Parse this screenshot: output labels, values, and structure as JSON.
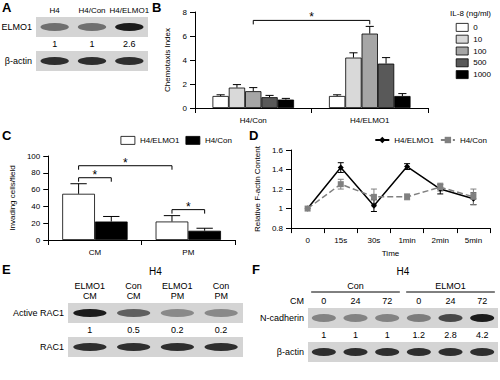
{
  "chart_data": [
    {
      "panel": "B",
      "type": "bar",
      "y_label": "Chemotaxis Index",
      "categories": [
        "H4/Con",
        "H4/ELMO1"
      ],
      "legend_title": "IL-8 (ng/ml)",
      "legend": "right",
      "grid": false,
      "series": [
        {
          "name": "0",
          "color": "#ffffff",
          "values": [
            1.0,
            1.0
          ],
          "errors": [
            0.1,
            0.1
          ]
        },
        {
          "name": "10",
          "color": "#d9d9d9",
          "values": [
            1.7,
            4.2
          ],
          "errors": [
            0.25,
            0.4
          ]
        },
        {
          "name": "100",
          "color": "#a6a6a6",
          "values": [
            1.4,
            6.2
          ],
          "errors": [
            0.3,
            0.6
          ]
        },
        {
          "name": "500",
          "color": "#595959",
          "values": [
            0.9,
            3.7
          ],
          "errors": [
            0.15,
            0.5
          ]
        },
        {
          "name": "1000",
          "color": "#000000",
          "values": [
            0.7,
            1.0
          ],
          "errors": [
            0.1,
            0.2
          ]
        }
      ],
      "ylim": [
        0,
        8
      ],
      "yticks": [
        0,
        2,
        4,
        6,
        8
      ],
      "significance": [
        {
          "text": "*",
          "from": {
            "category": "H4/Con"
          },
          "to": {
            "category": "H4/ELMO1"
          }
        }
      ]
    },
    {
      "panel": "C",
      "type": "bar",
      "y_label": "Invading cells/field",
      "categories": [
        "CM",
        "PM"
      ],
      "legend": "top",
      "grid": false,
      "series": [
        {
          "name": "H4/ELMO1",
          "color": "#ffffff",
          "values": [
            55,
            22
          ],
          "errors": [
            12,
            7
          ]
        },
        {
          "name": "H4/Con",
          "color": "#000000",
          "values": [
            22,
            11
          ],
          "errors": [
            6,
            3
          ]
        }
      ],
      "ylim": [
        0,
        100
      ],
      "yticks": [
        0,
        20,
        40,
        60,
        80,
        100
      ],
      "significance": [
        {
          "text": "*",
          "from": {
            "category": "CM",
            "series": "H4/ELMO1"
          },
          "to": {
            "category": "CM",
            "series": "H4/Con"
          }
        },
        {
          "text": "*",
          "from": {
            "category": "PM",
            "series": "H4/ELMO1"
          },
          "to": {
            "category": "PM",
            "series": "H4/Con"
          }
        },
        {
          "text": "*",
          "from": {
            "category": "CM",
            "series": "H4/ELMO1"
          },
          "to": {
            "category": "PM",
            "series": "H4/ELMO1"
          }
        }
      ]
    },
    {
      "panel": "D",
      "type": "line",
      "y_label": "Relative F-actin Content",
      "x_label": "Time",
      "categories": [
        "0",
        "15s",
        "30s",
        "1min",
        "2min",
        "5min"
      ],
      "legend": "top",
      "grid": false,
      "series": [
        {
          "name": "H4/ELMO1",
          "color": "#000000",
          "marker": "diamond",
          "line_style": "solid",
          "values": [
            1.0,
            1.42,
            1.03,
            1.43,
            1.2,
            1.1
          ],
          "errors": [
            0,
            0.05,
            0.06,
            0.03,
            0.05,
            0.06
          ]
        },
        {
          "name": "H4/Con",
          "color": "#808080",
          "marker": "square",
          "line_style": "dashed",
          "values": [
            1.0,
            1.25,
            1.12,
            1.12,
            1.22,
            1.12
          ],
          "errors": [
            0,
            0.05,
            0.08,
            0.03,
            0.04,
            0.08
          ]
        }
      ],
      "ylim": [
        0.8,
        1.6
      ],
      "yticks": [
        0.8,
        1,
        1.2,
        1.4,
        1.6
      ]
    }
  ],
  "blots": [
    {
      "panel": "A",
      "columns": [
        "H4",
        "H4/Con",
        "H4/ELMO1"
      ],
      "rows": [
        {
          "label": "ELMO1",
          "values": [
            1,
            1,
            2.6
          ]
        },
        {
          "label": "β-actin"
        }
      ]
    },
    {
      "panel": "E",
      "title": "H4",
      "columns": [
        [
          "ELMO1",
          "CM"
        ],
        [
          "Con",
          "CM"
        ],
        [
          "ELMO1",
          "PM"
        ],
        [
          "Con",
          "PM"
        ]
      ],
      "rows": [
        {
          "label": "Active RAC1",
          "values": [
            1,
            0.5,
            0.2,
            0.2
          ]
        },
        {
          "label": "RAC1"
        }
      ]
    },
    {
      "panel": "F",
      "title": "H4",
      "condition_label": "CM",
      "groups": [
        {
          "label": "Con",
          "columns": [
            "0",
            "24",
            "72"
          ]
        },
        {
          "label": "ELMO1",
          "columns": [
            "0",
            "24",
            "72"
          ]
        }
      ],
      "rows": [
        {
          "label": "N-cadherin",
          "values": [
            1,
            1,
            1,
            1.2,
            2.8,
            4.2
          ]
        },
        {
          "label": "β-actin"
        }
      ]
    }
  ]
}
